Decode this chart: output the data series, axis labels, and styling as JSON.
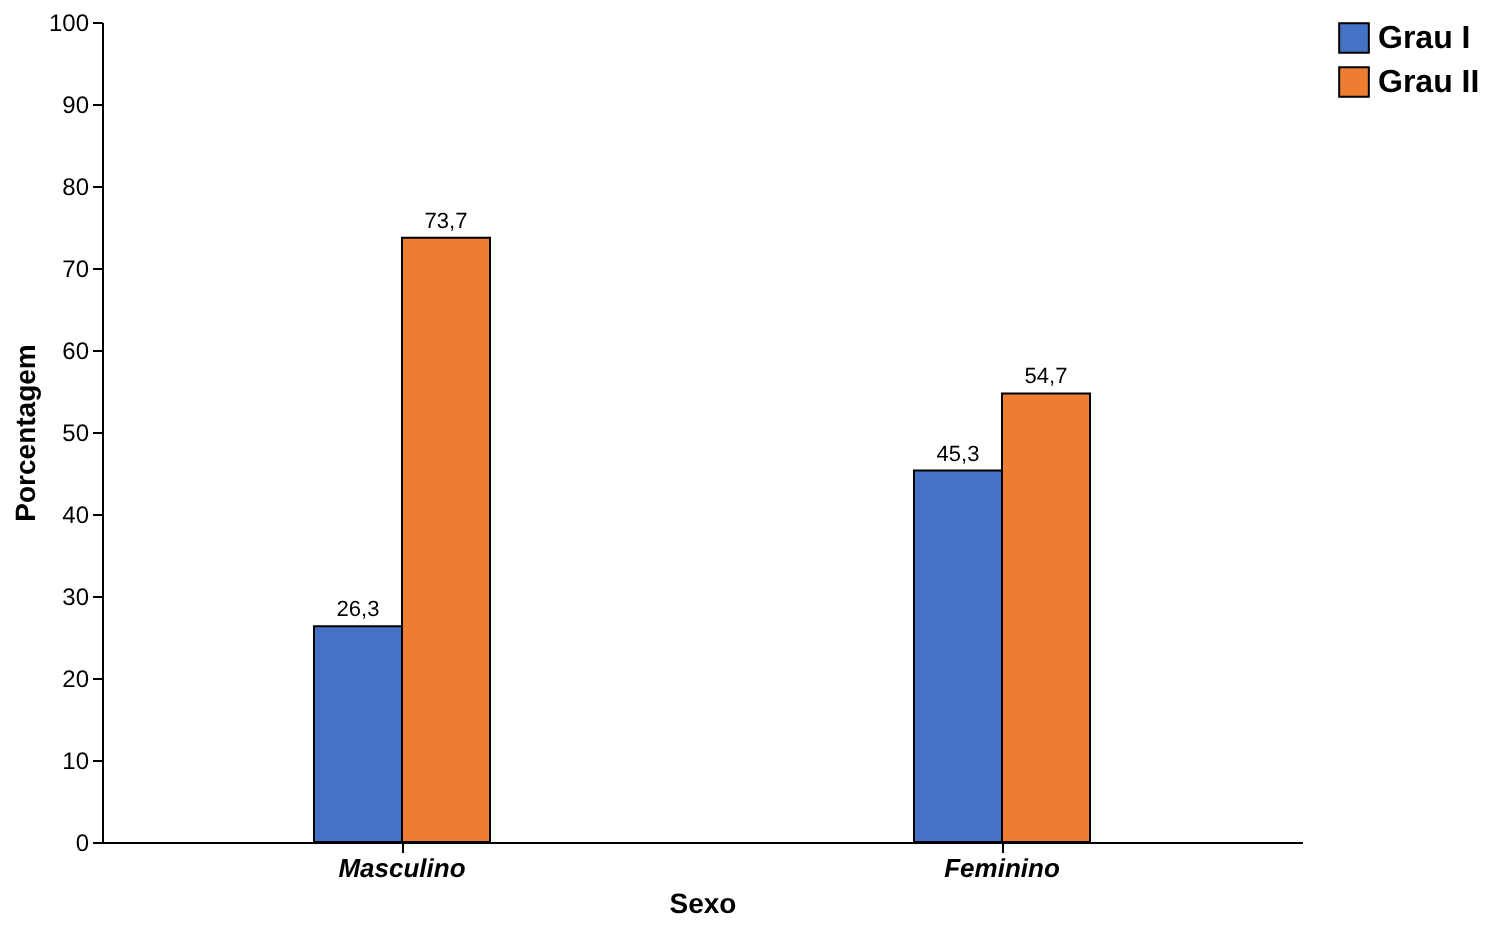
{
  "chart_data": {
    "type": "bar",
    "xlabel": "Sexo",
    "ylabel": "Porcentagem",
    "categories": [
      "Masculino",
      "Feminino"
    ],
    "series": [
      {
        "name": "Grau I",
        "color": "#4472c4",
        "values": [
          26.3,
          45.3
        ],
        "value_labels": [
          "26,3",
          "45,3"
        ]
      },
      {
        "name": "Grau II",
        "color": "#ed7d31",
        "values": [
          73.7,
          54.7
        ],
        "value_labels": [
          "73,7",
          "54,7"
        ]
      }
    ],
    "ylim": [
      0,
      100
    ],
    "yticks": [
      0,
      10,
      20,
      30,
      40,
      50,
      60,
      70,
      80,
      90,
      100
    ],
    "grid": false,
    "legend": "right"
  }
}
